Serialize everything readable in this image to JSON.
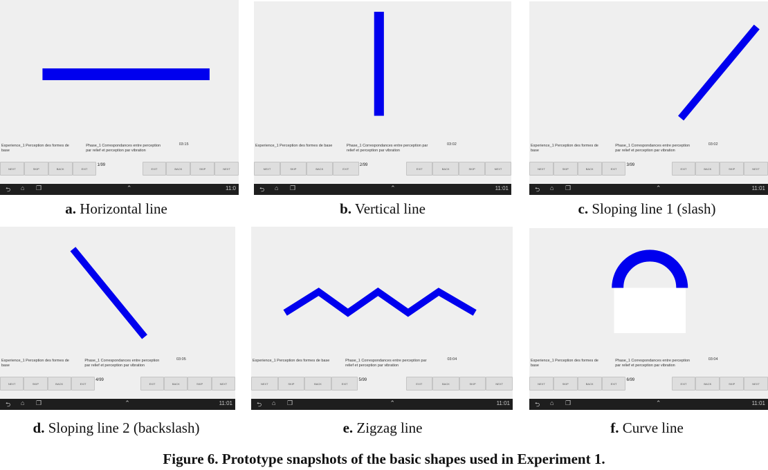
{
  "panels": [
    {
      "id": "a",
      "counter": "1/99",
      "clock": "03:15",
      "time": "11:0",
      "caption_letter": "a.",
      "caption_text": "Horizontal line",
      "shape": "horizontal-line"
    },
    {
      "id": "b",
      "counter": "2/99",
      "clock": "03:02",
      "time": "11:01",
      "caption_letter": "b.",
      "caption_text": "Vertical line",
      "shape": "vertical-line"
    },
    {
      "id": "c",
      "counter": "3/99",
      "clock": "03:02",
      "time": "11:01",
      "caption_letter": "c.",
      "caption_text": "Sloping line 1 (slash)",
      "shape": "slash-line"
    },
    {
      "id": "d",
      "counter": "4/99",
      "clock": "03:05",
      "time": "11:01",
      "caption_letter": "d.",
      "caption_text": "Sloping line 2 (backslash)",
      "shape": "backslash-line"
    },
    {
      "id": "e",
      "counter": "5/99",
      "clock": "03:04",
      "time": "11:01",
      "caption_letter": "e.",
      "caption_text": "Zigzag line",
      "shape": "zigzag-line"
    },
    {
      "id": "f",
      "counter": "6/99",
      "clock": "03:04",
      "time": "11:01",
      "caption_letter": "f.",
      "caption_text": "Curve line",
      "shape": "curve-line"
    }
  ],
  "screen": {
    "experiment_label": "Experience_1 Perception des formes de base",
    "phase_label": "Phase_1 Correspondances entre perception par relief et perception par vibration",
    "left_buttons": [
      "NEXT",
      "SKIP",
      "BACK",
      "EXIT"
    ],
    "right_buttons": [
      "EXIT",
      "BACK",
      "SKIP",
      "NEXT"
    ],
    "shape_color": "#0000ee"
  },
  "figure_caption": "Figure 6.  Prototype snapshots of the basic shapes used in Experiment 1."
}
